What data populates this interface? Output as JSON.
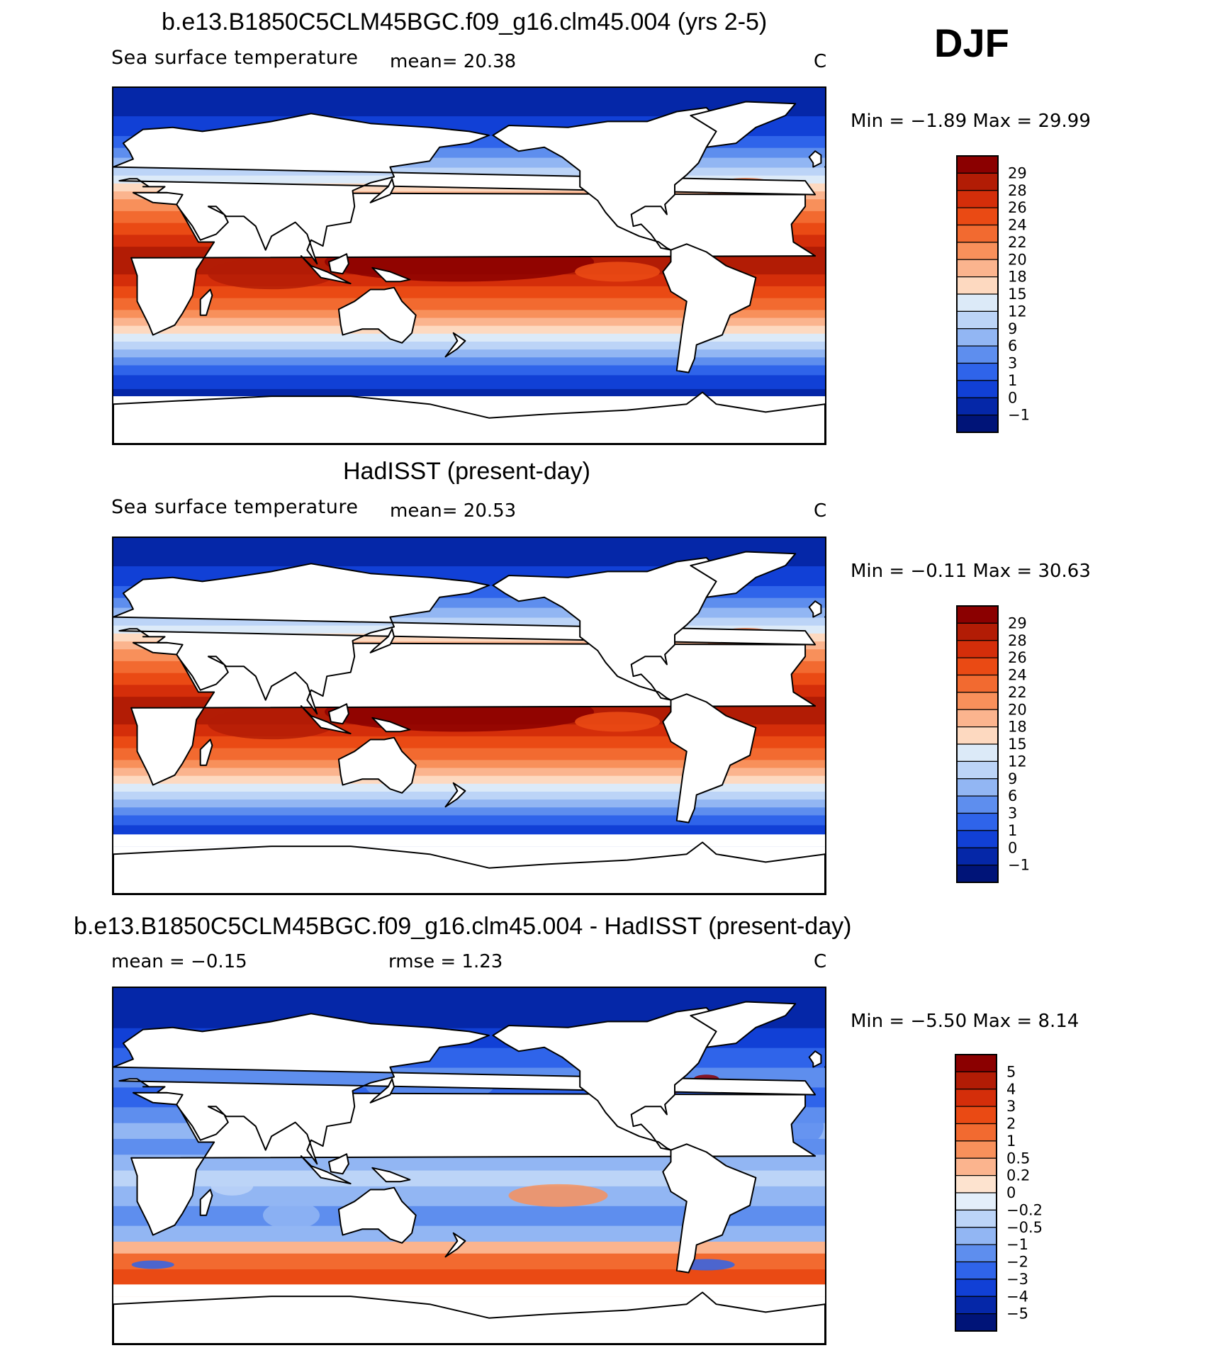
{
  "season": "DJF",
  "panels": [
    {
      "id": "model",
      "title": "b.e13.B1850C5CLM45BGC.f09_g16.clm45.004 (yrs 2-5)",
      "field_label": "Sea surface temperature",
      "stat1": "mean=  20.38",
      "stat2": "",
      "units": "C",
      "minmax": "Min =   −1.89 Max =   29.99",
      "colorbar": {
        "levels": [
          "29",
          "28",
          "26",
          "24",
          "22",
          "20",
          "18",
          "15",
          "12",
          "9",
          "6",
          "3",
          "1",
          "0",
          "−1"
        ],
        "colors": [
          "#8b0000",
          "#b21c05",
          "#d42e0a",
          "#ea4a14",
          "#f26a30",
          "#f8905b",
          "#fbb48e",
          "#fdd9c0",
          "#dceaf8",
          "#bcd4f7",
          "#92b6f3",
          "#5e8eee",
          "#2f64ea",
          "#1140d6",
          "#0527a8",
          "#001478"
        ]
      },
      "chart_data": {
        "type": "heatmap",
        "title": "b.e13.B1850C5CLM45BGC.f09_g16.clm45.004 (yrs 2-5)",
        "variable": "Sea surface temperature",
        "units": "C",
        "mean": 20.38,
        "min": -1.89,
        "max": 29.99,
        "contour_levels": [
          -1,
          0,
          1,
          3,
          6,
          9,
          12,
          15,
          18,
          20,
          22,
          24,
          26,
          28,
          29
        ]
      }
    },
    {
      "id": "obs",
      "title": "HadISST (present-day)",
      "field_label": "Sea surface temperature",
      "stat1": "mean=  20.53",
      "stat2": "",
      "units": "C",
      "minmax": "Min =   −0.11 Max =   30.63",
      "colorbar": {
        "levels": [
          "29",
          "28",
          "26",
          "24",
          "22",
          "20",
          "18",
          "15",
          "12",
          "9",
          "6",
          "3",
          "1",
          "0",
          "−1"
        ],
        "colors": [
          "#8b0000",
          "#b21c05",
          "#d42e0a",
          "#ea4a14",
          "#f26a30",
          "#f8905b",
          "#fbb48e",
          "#fdd9c0",
          "#dceaf8",
          "#bcd4f7",
          "#92b6f3",
          "#5e8eee",
          "#2f64ea",
          "#1140d6",
          "#0527a8",
          "#001478"
        ]
      },
      "chart_data": {
        "type": "heatmap",
        "title": "HadISST (present-day)",
        "variable": "Sea surface temperature",
        "units": "C",
        "mean": 20.53,
        "min": -0.11,
        "max": 30.63,
        "contour_levels": [
          -1,
          0,
          1,
          3,
          6,
          9,
          12,
          15,
          18,
          20,
          22,
          24,
          26,
          28,
          29
        ]
      }
    },
    {
      "id": "diff",
      "title": "b.e13.B1850C5CLM45BGC.f09_g16.clm45.004 - HadISST (present-day)",
      "field_label": "",
      "stat1": "mean =   −0.15",
      "stat2": "rmse =    1.23",
      "units": "C",
      "minmax": "Min =   −5.50 Max =    8.14",
      "colorbar": {
        "levels": [
          "5",
          "4",
          "3",
          "2",
          "1",
          "0.5",
          "0.2",
          "0",
          "−0.2",
          "−0.5",
          "−1",
          "−2",
          "−3",
          "−4",
          "−5"
        ],
        "colors": [
          "#8b0000",
          "#b21c05",
          "#d42e0a",
          "#ea4a14",
          "#f26a30",
          "#f8905b",
          "#fbb48e",
          "#fde3cf",
          "#e3eefa",
          "#bcd4f7",
          "#92b6f3",
          "#5e8eee",
          "#2f64ea",
          "#1140d6",
          "#0527a8",
          "#001478"
        ]
      },
      "chart_data": {
        "type": "heatmap",
        "title": "b.e13.B1850C5CLM45BGC.f09_g16.clm45.004 - HadISST (present-day)",
        "units": "C",
        "mean": -0.15,
        "rmse": 1.23,
        "min": -5.5,
        "max": 8.14,
        "contour_levels": [
          -5,
          -4,
          -3,
          -2,
          -1,
          -0.5,
          -0.2,
          0,
          0.2,
          0.5,
          1,
          2,
          3,
          4,
          5
        ]
      }
    }
  ]
}
